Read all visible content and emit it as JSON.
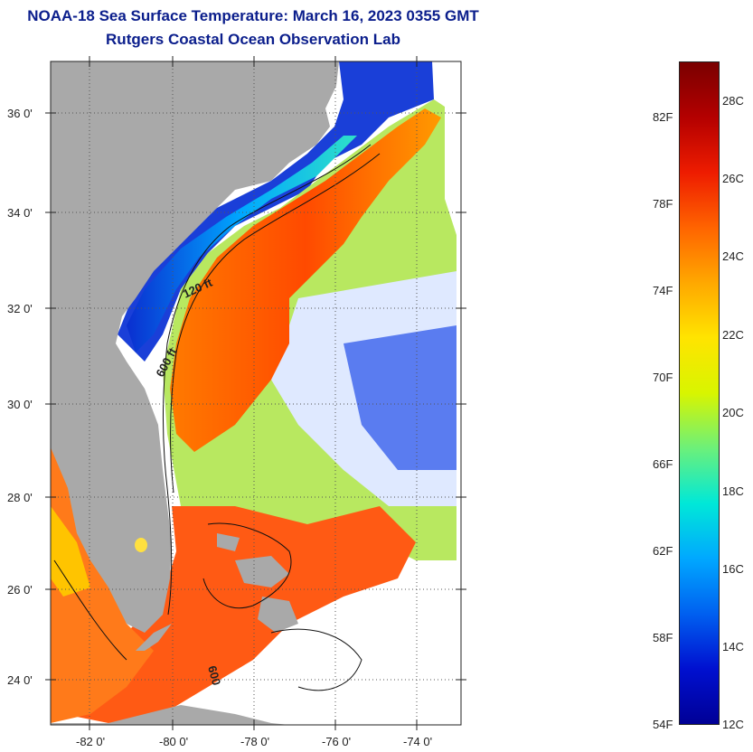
{
  "header": {
    "title": "NOAA-18 Sea Surface Temperature:  March 16, 2023 0355 GMT",
    "subtitle": "Rutgers Coastal Ocean Observation Lab"
  },
  "map": {
    "lat_ticks": [
      "36 0'",
      "34 0'",
      "32 0'",
      "30 0'",
      "28 0'",
      "26 0'",
      "24 0'"
    ],
    "lon_ticks": [
      "-82 0'",
      "-80 0'",
      "-78 0'",
      "-76 0'",
      "-74 0'"
    ],
    "contour_labels": [
      "120 ft",
      "600 ft",
      "600"
    ],
    "colors": {
      "land": "#a9a9a9",
      "no_data": "#ffffff"
    }
  },
  "colorbar": {
    "fahrenheit": [
      "82F",
      "78F",
      "74F",
      "70F",
      "66F",
      "62F",
      "58F",
      "54F"
    ],
    "celsius": [
      "28C",
      "26C",
      "24C",
      "22C",
      "20C",
      "18C",
      "16C",
      "14C",
      "12C"
    ],
    "gradient": [
      "#7a0000",
      "#b40000",
      "#ee1c00",
      "#ff6400",
      "#ffa800",
      "#ffe400",
      "#d8f500",
      "#6cf07a",
      "#00e8d8",
      "#00a8ff",
      "#0060f0",
      "#0010d0",
      "#000096"
    ]
  }
}
